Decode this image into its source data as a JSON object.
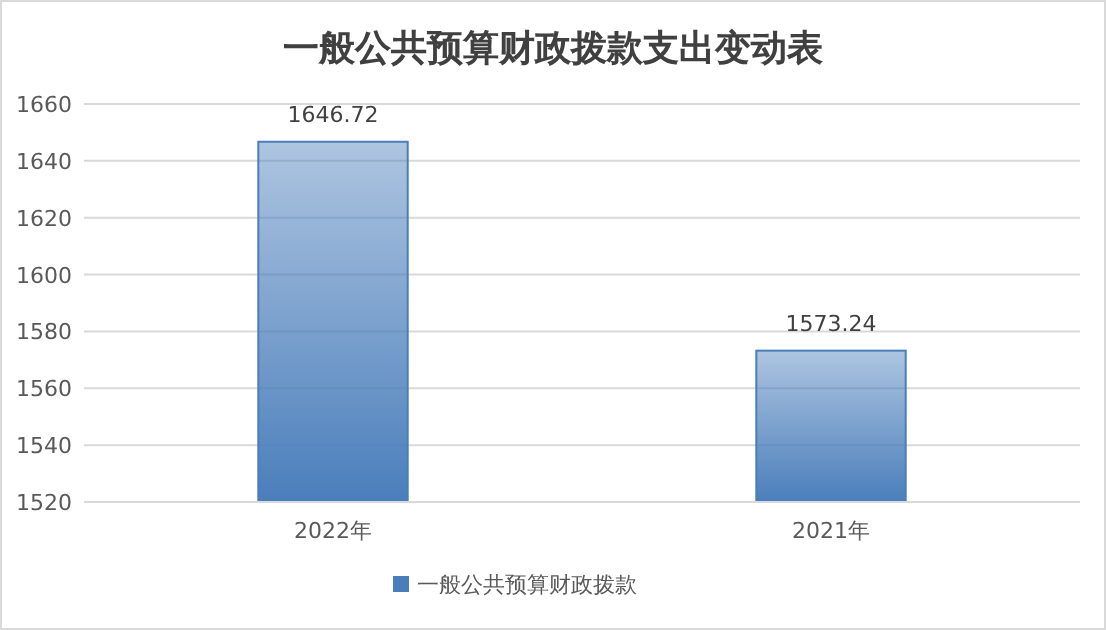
{
  "chart_data": {
    "type": "bar",
    "title": "一般公共预算财政拨款支出变动表",
    "categories": [
      "2022年",
      "2021年"
    ],
    "series": [
      {
        "name": "一般公共预算财政拨款",
        "color": "#4a7ebb",
        "values": [
          1646.72,
          1573.24
        ]
      }
    ],
    "ylim": [
      1520,
      1660
    ],
    "yticks": [
      1520,
      1540,
      1560,
      1580,
      1600,
      1620,
      1640,
      1660
    ],
    "grid": "y",
    "legend": "bottom",
    "data_labels": true
  }
}
